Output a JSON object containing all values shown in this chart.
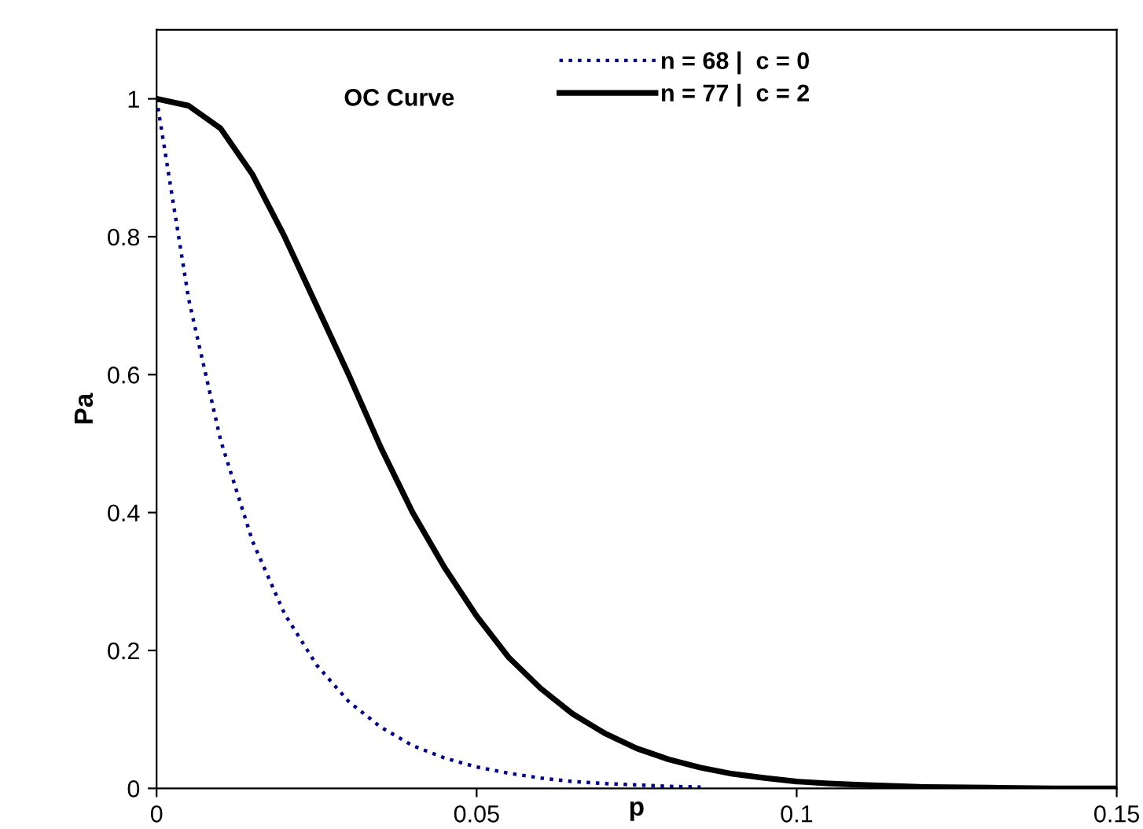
{
  "chart_data": {
    "type": "line",
    "legend_title": "OC Curve",
    "xlabel": "p",
    "ylabel": "Pa",
    "xlim": [
      0,
      0.15
    ],
    "ylim": [
      0,
      1.1
    ],
    "xticks": [
      0,
      0.05,
      0.1,
      0.15
    ],
    "yticks": [
      0,
      0.2,
      0.4,
      0.6,
      0.8,
      1
    ],
    "grid": false,
    "legend": "top",
    "marker": "none",
    "series": [
      {
        "name": "n = 68 |  c = 0",
        "color": "#000080",
        "line_style": "dotted",
        "x": [
          0,
          0.005,
          0.01,
          0.015,
          0.02,
          0.025,
          0.03,
          0.035,
          0.04,
          0.045,
          0.05,
          0.055,
          0.06,
          0.065,
          0.07,
          0.075,
          0.08,
          0.085
        ],
        "values": [
          1,
          0.71,
          0.505,
          0.358,
          0.253,
          0.179,
          0.126,
          0.089,
          0.062,
          0.044,
          0.031,
          0.022,
          0.015,
          0.01,
          0.007,
          0.005,
          0.003,
          0.002
        ]
      },
      {
        "name": "n = 77 |  c = 2",
        "color": "#000000",
        "line_style": "solid",
        "x": [
          0,
          0.005,
          0.01,
          0.015,
          0.02,
          0.025,
          0.03,
          0.035,
          0.04,
          0.045,
          0.05,
          0.055,
          0.06,
          0.065,
          0.07,
          0.075,
          0.08,
          0.085,
          0.09,
          0.095,
          0.1,
          0.105,
          0.11,
          0.12,
          0.13,
          0.14,
          0.15
        ],
        "values": [
          1,
          0.99,
          0.957,
          0.89,
          0.8,
          0.7,
          0.6,
          0.495,
          0.4,
          0.32,
          0.25,
          0.19,
          0.145,
          0.108,
          0.08,
          0.058,
          0.042,
          0.03,
          0.021,
          0.015,
          0.01,
          0.007,
          0.005,
          0.002,
          0.001,
          0,
          0
        ]
      }
    ]
  }
}
